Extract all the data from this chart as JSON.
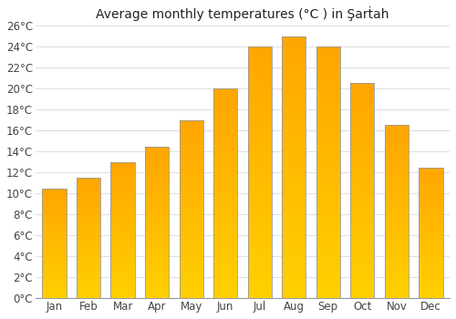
{
  "title": "Average monthly temperatures (°C ) in Şarṫah",
  "months": [
    "Jan",
    "Feb",
    "Mar",
    "Apr",
    "May",
    "Jun",
    "Jul",
    "Aug",
    "Sep",
    "Oct",
    "Nov",
    "Dec"
  ],
  "values": [
    10.5,
    11.5,
    13.0,
    14.5,
    17.0,
    20.0,
    24.0,
    25.0,
    24.0,
    20.5,
    16.5,
    12.5
  ],
  "bar_color_face": "#FFA500",
  "bar_gradient_bottom": "#FFD000",
  "bar_edge_color": "#999999",
  "ylim": [
    0,
    26
  ],
  "ytick_values": [
    0,
    2,
    4,
    6,
    8,
    10,
    12,
    14,
    16,
    18,
    20,
    22,
    24,
    26
  ],
  "background_color": "#ffffff",
  "grid_color": "#e0e0e0",
  "title_fontsize": 10,
  "tick_fontsize": 8.5
}
